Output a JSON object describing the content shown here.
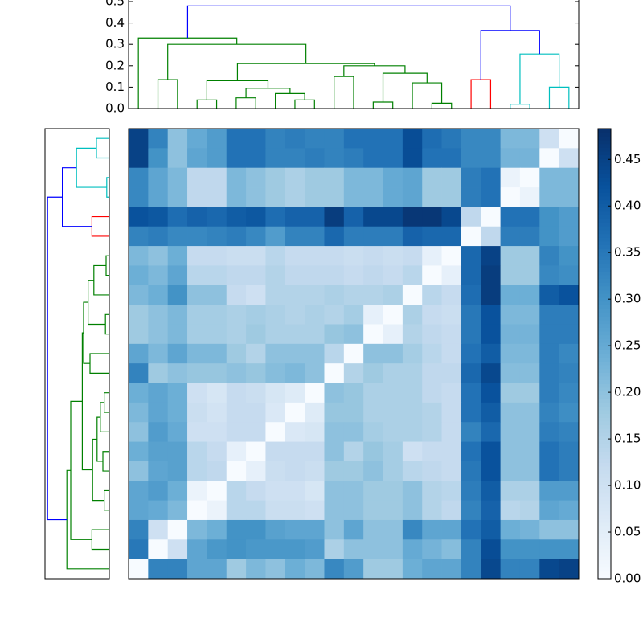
{
  "chart_data": {
    "type": "heatmap",
    "colormap": "Blues",
    "clim": [
      0,
      0.483
    ],
    "cticks": [
      {
        "value": 0,
        "label": "0.00"
      },
      {
        "value": 0.05,
        "label": "0.05"
      },
      {
        "value": 0.1,
        "label": "0.10"
      },
      {
        "value": 0.15,
        "label": "0.15"
      },
      {
        "value": 0.2,
        "label": "0.20"
      },
      {
        "value": 0.25,
        "label": "0.25"
      },
      {
        "value": 0.3,
        "label": "0.30"
      },
      {
        "value": 0.35,
        "label": "0.35"
      },
      {
        "value": 0.4,
        "label": "0.40"
      },
      {
        "value": 0.45,
        "label": "0.45"
      }
    ],
    "dendro_ylim": [
      0,
      0.5
    ],
    "dendro_yticks": [
      {
        "value": 0,
        "label": "0.0"
      },
      {
        "value": 0.1,
        "label": "0.1"
      },
      {
        "value": 0.2,
        "label": "0.2"
      },
      {
        "value": 0.3,
        "label": "0.3"
      },
      {
        "value": 0.4,
        "label": "0.4"
      },
      {
        "value": 0.5,
        "label": "0.5"
      }
    ],
    "links": [
      {
        "children": [
          3,
          4
        ],
        "height": 0.04,
        "color": "#008000"
      },
      {
        "children": [
          5,
          6
        ],
        "height": 0.05,
        "color": "#008000"
      },
      {
        "children": [
          8,
          9
        ],
        "height": 0.04,
        "color": "#008000"
      },
      {
        "children": [
          7,
          25
        ],
        "height": 0.07,
        "color": "#008000"
      },
      {
        "children": [
          24,
          26
        ],
        "height": 0.095,
        "color": "#008000"
      },
      {
        "children": [
          23,
          27
        ],
        "height": 0.13,
        "color": "#008000"
      },
      {
        "children": [
          1,
          2
        ],
        "height": 0.135,
        "color": "#008000"
      },
      {
        "children": [
          10,
          11
        ],
        "height": 0.15,
        "color": "#008000"
      },
      {
        "children": [
          12,
          13
        ],
        "height": 0.03,
        "color": "#008000"
      },
      {
        "children": [
          15,
          16
        ],
        "height": 0.025,
        "color": "#008000"
      },
      {
        "children": [
          14,
          32
        ],
        "height": 0.12,
        "color": "#008000"
      },
      {
        "children": [
          31,
          33
        ],
        "height": 0.165,
        "color": "#008000"
      },
      {
        "children": [
          30,
          34
        ],
        "height": 0.2,
        "color": "#008000"
      },
      {
        "children": [
          28,
          35
        ],
        "height": 0.21,
        "color": "#008000"
      },
      {
        "children": [
          29,
          36
        ],
        "height": 0.3,
        "color": "#008000"
      },
      {
        "children": [
          0,
          37
        ],
        "height": 0.33,
        "color": "#008000"
      },
      {
        "children": [
          17,
          18
        ],
        "height": 0.135,
        "color": "#ff0000"
      },
      {
        "children": [
          19,
          20
        ],
        "height": 0.02,
        "color": "#00bfbf"
      },
      {
        "children": [
          21,
          22
        ],
        "height": 0.1,
        "color": "#00bfbf"
      },
      {
        "children": [
          40,
          41
        ],
        "height": 0.255,
        "color": "#00bfbf"
      },
      {
        "children": [
          39,
          42
        ],
        "height": 0.365,
        "color": "#0000ff"
      },
      {
        "children": [
          38,
          43
        ],
        "height": 0.48,
        "color": "#0000ff"
      }
    ],
    "matrix": [
      [
        0.45,
        0.33,
        0.2,
        0.25,
        0.28,
        0.36,
        0.36,
        0.33,
        0.34,
        0.33,
        0.33,
        0.36,
        0.36,
        0.36,
        0.43,
        0.37,
        0.35,
        0.32,
        0.32,
        0.22,
        0.22,
        0.1,
        0
      ],
      [
        0.45,
        0.3,
        0.2,
        0.26,
        0.28,
        0.36,
        0.36,
        0.33,
        0.33,
        0.34,
        0.33,
        0.34,
        0.36,
        0.36,
        0.43,
        0.36,
        0.36,
        0.32,
        0.32,
        0.23,
        0.23,
        0,
        0.1
      ],
      [
        0.32,
        0.26,
        0.22,
        0.13,
        0.13,
        0.22,
        0.2,
        0.18,
        0.16,
        0.18,
        0.18,
        0.22,
        0.22,
        0.25,
        0.26,
        0.18,
        0.18,
        0.34,
        0.36,
        0.03,
        0,
        0.22,
        0.22
      ],
      [
        0.32,
        0.26,
        0.22,
        0.13,
        0.13,
        0.22,
        0.2,
        0.18,
        0.16,
        0.18,
        0.18,
        0.22,
        0.22,
        0.25,
        0.26,
        0.18,
        0.18,
        0.34,
        0.36,
        0,
        0.03,
        0.22,
        0.22
      ],
      [
        0.42,
        0.41,
        0.37,
        0.39,
        0.38,
        0.4,
        0.41,
        0.37,
        0.39,
        0.39,
        0.46,
        0.39,
        0.44,
        0.44,
        0.47,
        0.47,
        0.44,
        0.13,
        0,
        0.36,
        0.36,
        0.3,
        0.28
      ],
      [
        0.33,
        0.34,
        0.32,
        0.32,
        0.33,
        0.34,
        0.32,
        0.28,
        0.33,
        0.33,
        0.38,
        0.34,
        0.34,
        0.34,
        0.39,
        0.38,
        0.38,
        0,
        0.13,
        0.34,
        0.34,
        0.3,
        0.28
      ],
      [
        0.22,
        0.2,
        0.24,
        0.12,
        0.12,
        0.11,
        0.11,
        0.14,
        0.12,
        0.12,
        0.12,
        0.11,
        0.12,
        0.11,
        0.12,
        0.04,
        0,
        0.38,
        0.45,
        0.18,
        0.18,
        0.33,
        0.3
      ],
      [
        0.24,
        0.22,
        0.26,
        0.14,
        0.14,
        0.13,
        0.13,
        0.15,
        0.13,
        0.13,
        0.13,
        0.12,
        0.13,
        0.12,
        0.14,
        0,
        0.04,
        0.38,
        0.46,
        0.18,
        0.18,
        0.32,
        0.31
      ],
      [
        0.22,
        0.24,
        0.3,
        0.2,
        0.2,
        0.12,
        0.1,
        0.15,
        0.15,
        0.15,
        0.16,
        0.15,
        0.15,
        0.16,
        0,
        0.14,
        0.12,
        0.37,
        0.46,
        0.24,
        0.24,
        0.4,
        0.42
      ],
      [
        0.18,
        0.2,
        0.22,
        0.17,
        0.17,
        0.16,
        0.17,
        0.16,
        0.15,
        0.16,
        0.15,
        0.17,
        0.04,
        0,
        0.16,
        0.12,
        0.11,
        0.35,
        0.42,
        0.22,
        0.22,
        0.34,
        0.34
      ],
      [
        0.18,
        0.2,
        0.22,
        0.17,
        0.17,
        0.16,
        0.18,
        0.16,
        0.16,
        0.16,
        0.19,
        0.2,
        0,
        0.04,
        0.15,
        0.13,
        0.12,
        0.35,
        0.42,
        0.23,
        0.23,
        0.34,
        0.34
      ],
      [
        0.26,
        0.22,
        0.26,
        0.22,
        0.22,
        0.18,
        0.15,
        0.2,
        0.2,
        0.2,
        0.14,
        0,
        0.2,
        0.2,
        0.17,
        0.14,
        0.12,
        0.36,
        0.4,
        0.22,
        0.22,
        0.34,
        0.32
      ],
      [
        0.33,
        0.18,
        0.2,
        0.19,
        0.19,
        0.2,
        0.19,
        0.21,
        0.22,
        0.2,
        0,
        0.15,
        0.18,
        0.16,
        0.16,
        0.13,
        0.13,
        0.38,
        0.44,
        0.21,
        0.21,
        0.34,
        0.33
      ],
      [
        0.24,
        0.26,
        0.24,
        0.1,
        0.08,
        0.12,
        0.11,
        0.08,
        0.06,
        0,
        0.2,
        0.19,
        0.16,
        0.16,
        0.16,
        0.13,
        0.12,
        0.36,
        0.42,
        0.18,
        0.18,
        0.34,
        0.32
      ],
      [
        0.22,
        0.26,
        0.24,
        0.11,
        0.09,
        0.12,
        0.12,
        0.07,
        0,
        0.06,
        0.19,
        0.19,
        0.16,
        0.16,
        0.16,
        0.15,
        0.12,
        0.36,
        0.4,
        0.2,
        0.2,
        0.33,
        0.31
      ],
      [
        0.2,
        0.28,
        0.25,
        0.1,
        0.1,
        0.12,
        0.12,
        0,
        0.07,
        0.08,
        0.2,
        0.2,
        0.17,
        0.16,
        0.16,
        0.15,
        0.12,
        0.33,
        0.38,
        0.2,
        0.2,
        0.34,
        0.33
      ],
      [
        0.24,
        0.27,
        0.27,
        0.14,
        0.12,
        0.04,
        0,
        0.12,
        0.12,
        0.12,
        0.2,
        0.15,
        0.19,
        0.17,
        0.1,
        0.12,
        0.12,
        0.36,
        0.42,
        0.2,
        0.2,
        0.36,
        0.34
      ],
      [
        0.2,
        0.26,
        0.27,
        0.14,
        0.13,
        0,
        0.04,
        0.11,
        0.12,
        0.11,
        0.18,
        0.18,
        0.2,
        0.17,
        0.14,
        0.13,
        0.12,
        0.35,
        0.42,
        0.2,
        0.2,
        0.36,
        0.34
      ],
      [
        0.26,
        0.28,
        0.24,
        0.03,
        0,
        0.14,
        0.12,
        0.1,
        0.1,
        0.08,
        0.2,
        0.2,
        0.18,
        0.18,
        0.2,
        0.15,
        0.14,
        0.34,
        0.4,
        0.16,
        0.16,
        0.28,
        0.28
      ],
      [
        0.26,
        0.25,
        0.22,
        0,
        0.03,
        0.14,
        0.14,
        0.11,
        0.11,
        0.1,
        0.2,
        0.2,
        0.18,
        0.18,
        0.2,
        0.15,
        0.13,
        0.33,
        0.39,
        0.14,
        0.15,
        0.26,
        0.25
      ],
      [
        0.33,
        0.1,
        0,
        0.22,
        0.24,
        0.3,
        0.3,
        0.27,
        0.26,
        0.26,
        0.2,
        0.26,
        0.2,
        0.2,
        0.32,
        0.26,
        0.26,
        0.36,
        0.4,
        0.24,
        0.23,
        0.2,
        0.2
      ],
      [
        0.35,
        0,
        0.1,
        0.26,
        0.29,
        0.3,
        0.29,
        0.29,
        0.29,
        0.28,
        0.16,
        0.2,
        0.2,
        0.2,
        0.25,
        0.23,
        0.21,
        0.33,
        0.43,
        0.3,
        0.3,
        0.3,
        0.3
      ],
      [
        0,
        0.33,
        0.33,
        0.26,
        0.26,
        0.18,
        0.22,
        0.2,
        0.24,
        0.22,
        0.32,
        0.28,
        0.18,
        0.18,
        0.24,
        0.26,
        0.26,
        0.33,
        0.44,
        0.33,
        0.33,
        0.44,
        0.45
      ]
    ]
  }
}
